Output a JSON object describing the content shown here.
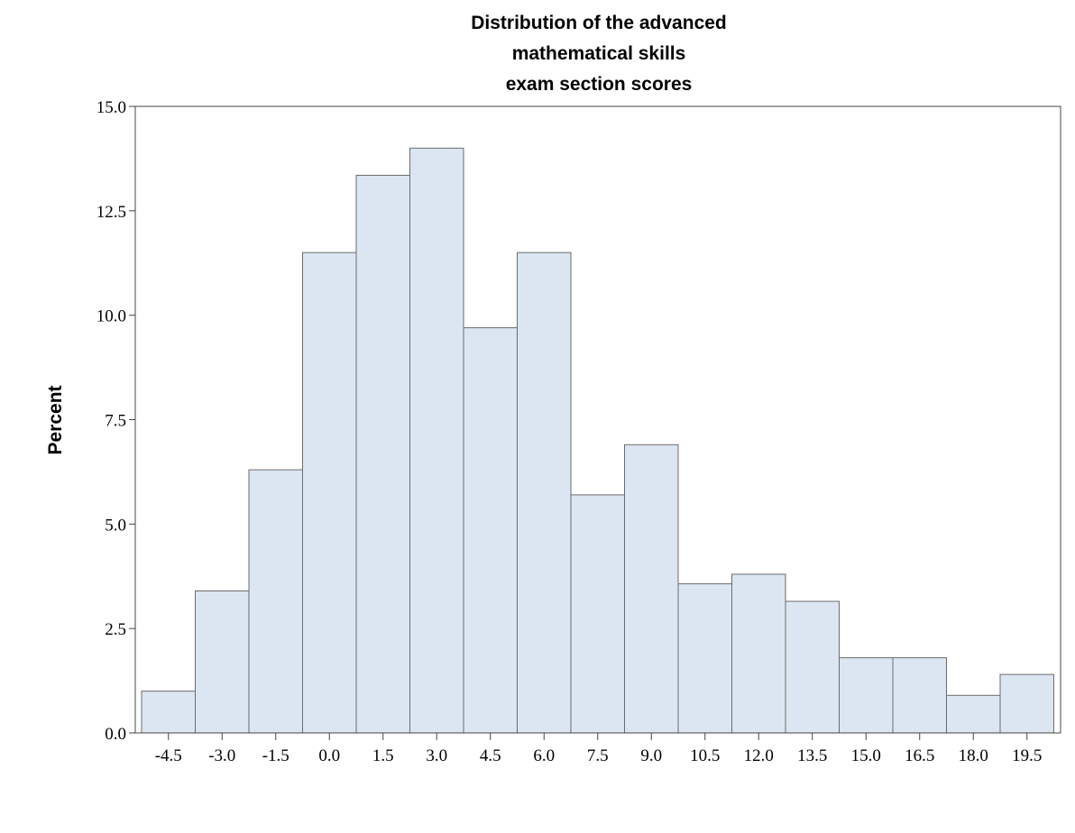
{
  "chart_data": {
    "type": "bar",
    "title": [
      "Distribution of the advanced",
      "mathematical skills",
      "exam section scores"
    ],
    "xlabel": "",
    "ylabel": "Percent",
    "categories": [
      "-4.5",
      "-3.0",
      "-1.5",
      "0.0",
      "1.5",
      "3.0",
      "4.5",
      "6.0",
      "7.5",
      "9.0",
      "10.5",
      "12.0",
      "13.5",
      "15.0",
      "16.5",
      "18.0",
      "19.5"
    ],
    "values": [
      1.0,
      3.4,
      6.3,
      11.5,
      13.35,
      14.0,
      9.7,
      11.5,
      5.7,
      6.9,
      3.57,
      3.8,
      3.15,
      1.8,
      1.8,
      0.9,
      1.4
    ],
    "ylim": [
      0,
      15
    ],
    "yticks": [
      "0.0",
      "2.5",
      "5.0",
      "7.5",
      "10.0",
      "12.5",
      "15.0"
    ],
    "grid": false,
    "bar_color": "#dce6f2",
    "bar_edge_color": "#6b6b6b"
  }
}
